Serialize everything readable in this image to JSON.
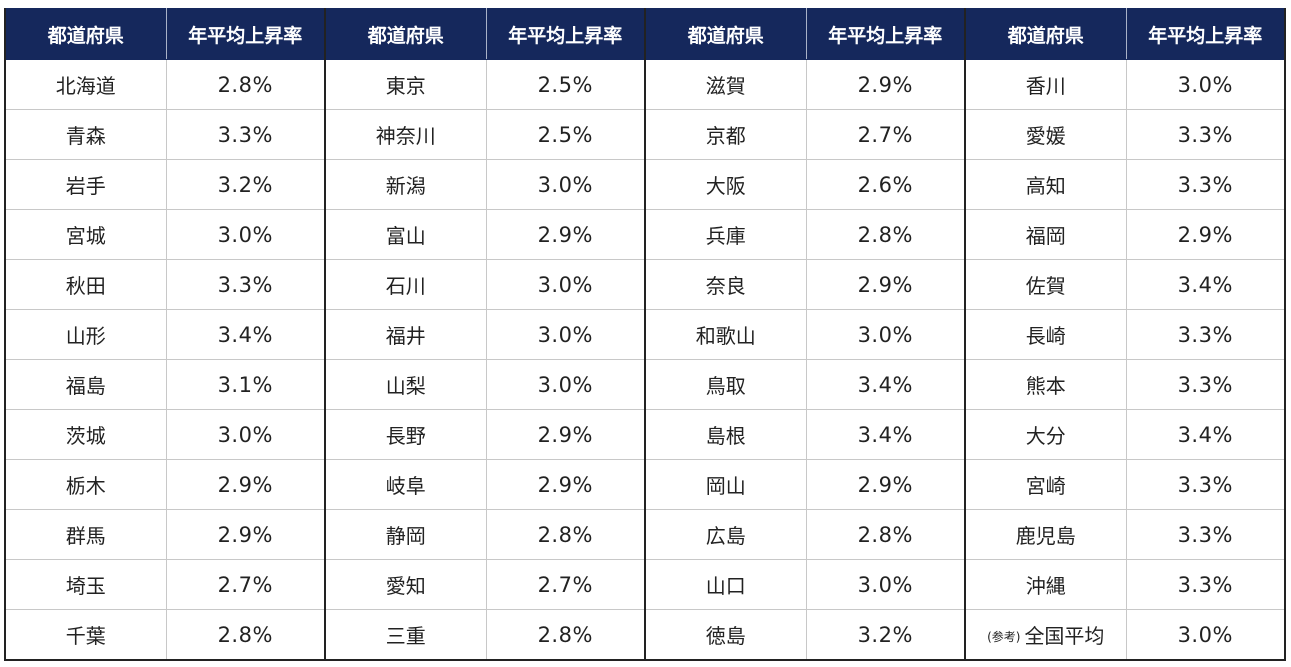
{
  "headers": {
    "prefecture": "都道府県",
    "rate": "年平均上昇率"
  },
  "groups": [
    {
      "rows": [
        {
          "pref": "北海道",
          "rate": "2.8%"
        },
        {
          "pref": "青森",
          "rate": "3.3%"
        },
        {
          "pref": "岩手",
          "rate": "3.2%"
        },
        {
          "pref": "宮城",
          "rate": "3.0%"
        },
        {
          "pref": "秋田",
          "rate": "3.3%"
        },
        {
          "pref": "山形",
          "rate": "3.4%"
        },
        {
          "pref": "福島",
          "rate": "3.1%"
        },
        {
          "pref": "茨城",
          "rate": "3.0%"
        },
        {
          "pref": "栃木",
          "rate": "2.9%"
        },
        {
          "pref": "群馬",
          "rate": "2.9%"
        },
        {
          "pref": "埼玉",
          "rate": "2.7%"
        },
        {
          "pref": "千葉",
          "rate": "2.8%"
        }
      ]
    },
    {
      "rows": [
        {
          "pref": "東京",
          "rate": "2.5%"
        },
        {
          "pref": "神奈川",
          "rate": "2.5%"
        },
        {
          "pref": "新潟",
          "rate": "3.0%"
        },
        {
          "pref": "富山",
          "rate": "2.9%"
        },
        {
          "pref": "石川",
          "rate": "3.0%"
        },
        {
          "pref": "福井",
          "rate": "3.0%"
        },
        {
          "pref": "山梨",
          "rate": "3.0%"
        },
        {
          "pref": "長野",
          "rate": "2.9%"
        },
        {
          "pref": "岐阜",
          "rate": "2.9%"
        },
        {
          "pref": "静岡",
          "rate": "2.8%"
        },
        {
          "pref": "愛知",
          "rate": "2.7%"
        },
        {
          "pref": "三重",
          "rate": "2.8%"
        }
      ]
    },
    {
      "rows": [
        {
          "pref": "滋賀",
          "rate": "2.9%"
        },
        {
          "pref": "京都",
          "rate": "2.7%"
        },
        {
          "pref": "大阪",
          "rate": "2.6%"
        },
        {
          "pref": "兵庫",
          "rate": "2.8%"
        },
        {
          "pref": "奈良",
          "rate": "2.9%"
        },
        {
          "pref": "和歌山",
          "rate": "3.0%"
        },
        {
          "pref": "鳥取",
          "rate": "3.4%"
        },
        {
          "pref": "島根",
          "rate": "3.4%"
        },
        {
          "pref": "岡山",
          "rate": "2.9%"
        },
        {
          "pref": "広島",
          "rate": "2.8%"
        },
        {
          "pref": "山口",
          "rate": "3.0%"
        },
        {
          "pref": "徳島",
          "rate": "3.2%"
        }
      ]
    },
    {
      "rows": [
        {
          "pref": "香川",
          "rate": "3.0%"
        },
        {
          "pref": "愛媛",
          "rate": "3.3%"
        },
        {
          "pref": "高知",
          "rate": "3.3%"
        },
        {
          "pref": "福岡",
          "rate": "2.9%"
        },
        {
          "pref": "佐賀",
          "rate": "3.4%"
        },
        {
          "pref": "長崎",
          "rate": "3.3%"
        },
        {
          "pref": "熊本",
          "rate": "3.3%"
        },
        {
          "pref": "大分",
          "rate": "3.4%"
        },
        {
          "pref": "宮崎",
          "rate": "3.3%"
        },
        {
          "pref": "鹿児島",
          "rate": "3.3%"
        },
        {
          "pref": "沖縄",
          "rate": "3.3%"
        },
        {
          "pref": "全国平均",
          "note": "(参考)",
          "rate": "3.0%"
        }
      ]
    }
  ]
}
